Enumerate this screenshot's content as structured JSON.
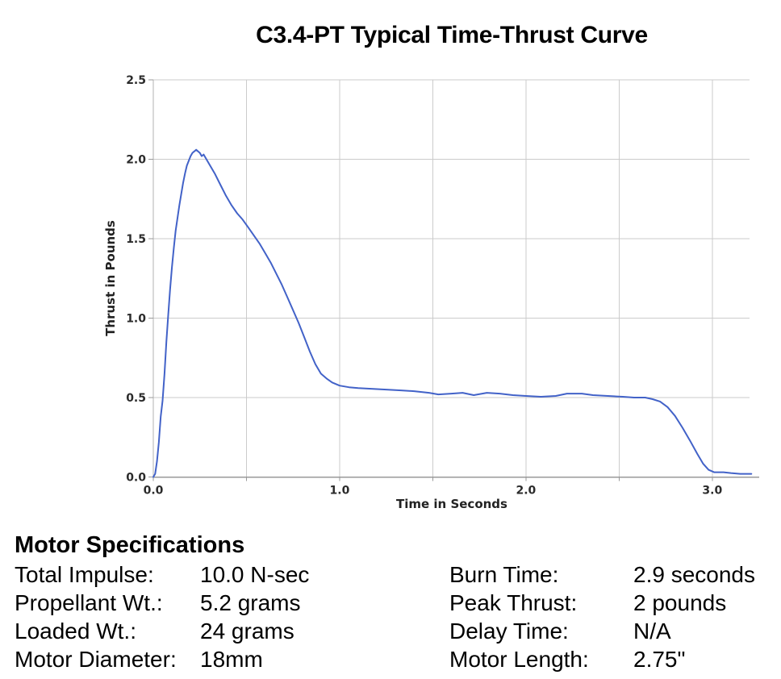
{
  "chart_data": {
    "type": "line",
    "title": "C3.4-PT Typical Time-Thrust Curve",
    "xlabel": "Time in Seconds",
    "ylabel": "Thrust in Pounds",
    "xlim": [
      0,
      3.2
    ],
    "ylim": [
      0,
      2.5
    ],
    "xticks_labeled": [
      0.0,
      1.0,
      2.0,
      3.0
    ],
    "xticks_all": [
      0.0,
      0.5,
      1.0,
      1.5,
      2.0,
      2.5,
      3.0
    ],
    "yticks": [
      0.0,
      0.5,
      1.0,
      1.5,
      2.0,
      2.5
    ],
    "grid": true,
    "legend": "none",
    "line_color": "#4262c8",
    "grid_color": "#cbcbcb",
    "axis_color": "#999999",
    "series": [
      {
        "name": "thrust-curve",
        "points": [
          [
            0.0,
            0.0
          ],
          [
            0.01,
            0.02
          ],
          [
            0.02,
            0.1
          ],
          [
            0.03,
            0.22
          ],
          [
            0.04,
            0.38
          ],
          [
            0.05,
            0.48
          ],
          [
            0.06,
            0.65
          ],
          [
            0.07,
            0.85
          ],
          [
            0.08,
            1.02
          ],
          [
            0.09,
            1.18
          ],
          [
            0.1,
            1.32
          ],
          [
            0.11,
            1.44
          ],
          [
            0.12,
            1.55
          ],
          [
            0.13,
            1.63
          ],
          [
            0.14,
            1.71
          ],
          [
            0.15,
            1.78
          ],
          [
            0.16,
            1.85
          ],
          [
            0.17,
            1.91
          ],
          [
            0.18,
            1.96
          ],
          [
            0.19,
            1.99
          ],
          [
            0.2,
            2.02
          ],
          [
            0.21,
            2.04
          ],
          [
            0.22,
            2.05
          ],
          [
            0.23,
            2.06
          ],
          [
            0.25,
            2.04
          ],
          [
            0.26,
            2.02
          ],
          [
            0.27,
            2.03
          ],
          [
            0.29,
            1.99
          ],
          [
            0.31,
            1.95
          ],
          [
            0.33,
            1.91
          ],
          [
            0.36,
            1.84
          ],
          [
            0.39,
            1.77
          ],
          [
            0.42,
            1.71
          ],
          [
            0.45,
            1.66
          ],
          [
            0.48,
            1.62
          ],
          [
            0.51,
            1.57
          ],
          [
            0.54,
            1.52
          ],
          [
            0.57,
            1.47
          ],
          [
            0.6,
            1.41
          ],
          [
            0.63,
            1.35
          ],
          [
            0.66,
            1.28
          ],
          [
            0.69,
            1.21
          ],
          [
            0.72,
            1.13
          ],
          [
            0.75,
            1.05
          ],
          [
            0.78,
            0.97
          ],
          [
            0.81,
            0.88
          ],
          [
            0.84,
            0.79
          ],
          [
            0.87,
            0.71
          ],
          [
            0.9,
            0.65
          ],
          [
            0.93,
            0.62
          ],
          [
            0.96,
            0.595
          ],
          [
            1.0,
            0.575
          ],
          [
            1.05,
            0.565
          ],
          [
            1.1,
            0.56
          ],
          [
            1.18,
            0.555
          ],
          [
            1.25,
            0.55
          ],
          [
            1.33,
            0.545
          ],
          [
            1.4,
            0.54
          ],
          [
            1.48,
            0.53
          ],
          [
            1.53,
            0.52
          ],
          [
            1.6,
            0.525
          ],
          [
            1.66,
            0.53
          ],
          [
            1.72,
            0.515
          ],
          [
            1.79,
            0.53
          ],
          [
            1.86,
            0.525
          ],
          [
            1.93,
            0.515
          ],
          [
            2.0,
            0.51
          ],
          [
            2.08,
            0.505
          ],
          [
            2.16,
            0.51
          ],
          [
            2.22,
            0.525
          ],
          [
            2.3,
            0.525
          ],
          [
            2.36,
            0.515
          ],
          [
            2.44,
            0.51
          ],
          [
            2.52,
            0.505
          ],
          [
            2.58,
            0.5
          ],
          [
            2.64,
            0.5
          ],
          [
            2.68,
            0.49
          ],
          [
            2.72,
            0.475
          ],
          [
            2.76,
            0.44
          ],
          [
            2.8,
            0.385
          ],
          [
            2.84,
            0.31
          ],
          [
            2.88,
            0.23
          ],
          [
            2.92,
            0.145
          ],
          [
            2.95,
            0.085
          ],
          [
            2.98,
            0.045
          ],
          [
            3.01,
            0.03
          ],
          [
            3.06,
            0.03
          ],
          [
            3.1,
            0.025
          ],
          [
            3.15,
            0.02
          ],
          [
            3.21,
            0.02
          ]
        ]
      }
    ]
  },
  "specs": {
    "header": "Motor Specifications",
    "left": [
      {
        "label": "Total Impulse:",
        "value": "10.0 N-sec"
      },
      {
        "label": "Propellant Wt.:",
        "value": "5.2 grams"
      },
      {
        "label": "Loaded Wt.:",
        "value": "24 grams"
      },
      {
        "label": "Motor Diameter:",
        "value": "18mm"
      }
    ],
    "right": [
      {
        "label": "Burn Time:",
        "value": "2.9 seconds"
      },
      {
        "label": "Peak Thrust:",
        "value": "2 pounds"
      },
      {
        "label": "Delay Time:",
        "value": "N/A"
      },
      {
        "label": "Motor Length:",
        "value": "2.75\""
      }
    ]
  }
}
